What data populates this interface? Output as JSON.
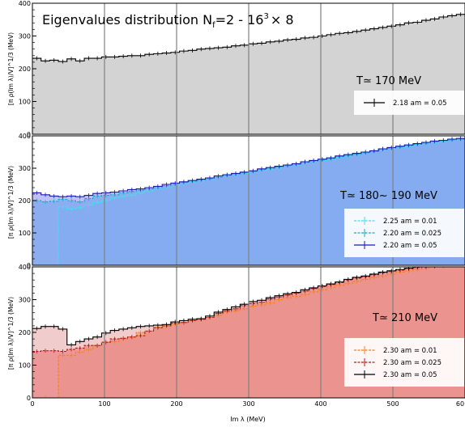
{
  "chart_data": [
    {
      "type": "area",
      "title_main": "Eigenvalues distribution N",
      "title_sub": "f",
      "title_mid": "=2 - 16",
      "title_sup": "3",
      "title_end": "× 8",
      "temperature_label": "T≃ 170 MeV",
      "ylabel": "[π ρ(Im λ)/V]^1/3 (MeV)",
      "xlim": [
        0,
        600
      ],
      "ylim": [
        0,
        400
      ],
      "x_ticks": [
        "100",
        "200",
        "300",
        "400",
        "500"
      ],
      "y_ticks": [
        "0",
        "100",
        "200",
        "300",
        "400"
      ],
      "legend_position": "right",
      "series": [
        {
          "name": "2.18 am = 0.05",
          "color": "#000000",
          "fill": "#d3d3d3",
          "x": [
            0,
            12,
            24,
            36,
            48,
            60,
            72,
            84,
            96,
            108,
            120,
            132,
            144,
            156,
            168,
            180,
            192,
            204,
            216,
            228,
            240,
            252,
            264,
            276,
            288,
            300,
            312,
            324,
            336,
            348,
            360,
            372,
            384,
            396,
            408,
            420,
            432,
            444,
            456,
            468,
            480,
            492,
            504,
            516,
            528,
            540,
            552,
            564,
            576,
            588,
            600
          ],
          "y": [
            232,
            224,
            226,
            222,
            230,
            224,
            232,
            232,
            236,
            236,
            238,
            240,
            240,
            244,
            246,
            248,
            250,
            254,
            256,
            260,
            262,
            264,
            266,
            270,
            272,
            276,
            278,
            282,
            284,
            288,
            290,
            294,
            296,
            300,
            304,
            308,
            310,
            314,
            318,
            322,
            326,
            330,
            334,
            340,
            342,
            348,
            352,
            358,
            362,
            366,
            368
          ]
        }
      ]
    },
    {
      "type": "area",
      "temperature_label": "T≃ 180~ 190 MeV",
      "ylabel": "[π ρ(Im λ)/V]^1/3 (MeV)",
      "xlim": [
        0,
        600
      ],
      "ylim": [
        0,
        400
      ],
      "y_ticks": [
        "0",
        "100",
        "200",
        "300",
        "400"
      ],
      "legend_position": "right",
      "series": [
        {
          "name": "2.25 am = 0.01",
          "color": "#40e0f0",
          "fill": "#5bc8f5",
          "x": [
            0,
            36,
            48,
            60,
            72,
            84,
            96,
            108,
            120,
            132,
            144,
            156,
            168,
            180,
            192,
            204,
            216,
            228,
            240,
            252,
            264,
            276,
            288,
            300,
            312,
            324,
            336,
            348,
            360,
            372,
            384,
            396,
            408,
            420,
            432,
            444,
            456,
            468,
            480,
            492,
            504,
            516,
            528,
            540,
            552,
            564,
            576,
            588,
            600
          ],
          "y": [
            0,
            180,
            174,
            178,
            186,
            194,
            200,
            208,
            212,
            216,
            224,
            230,
            236,
            240,
            246,
            252,
            258,
            262,
            266,
            272,
            276,
            280,
            284,
            290,
            294,
            298,
            302,
            306,
            310,
            316,
            320,
            324,
            328,
            334,
            338,
            344,
            348,
            352,
            356,
            360,
            364,
            368,
            372,
            376,
            380,
            384,
            388,
            390,
            392
          ]
        },
        {
          "name": "2.20 am = 0.025",
          "color": "#1aa8c8",
          "fill": "#5bc0f0",
          "x": [
            0,
            12,
            24,
            36,
            48,
            60,
            72,
            84,
            96,
            108,
            120,
            132,
            144,
            156,
            168,
            180,
            192,
            204,
            216,
            228,
            240,
            252,
            264,
            276,
            288,
            300,
            312,
            324,
            336,
            348,
            360,
            372,
            384,
            396,
            408,
            420,
            432,
            444,
            456,
            468,
            480,
            492,
            504,
            516,
            528,
            540,
            552,
            564,
            576,
            588,
            600
          ],
          "y": [
            200,
            196,
            198,
            204,
            200,
            196,
            206,
            214,
            216,
            218,
            224,
            228,
            232,
            236,
            240,
            246,
            250,
            256,
            260,
            264,
            268,
            272,
            278,
            282,
            286,
            290,
            296,
            300,
            304,
            308,
            312,
            318,
            322,
            326,
            330,
            336,
            340,
            344,
            348,
            352,
            358,
            362,
            366,
            370,
            374,
            378,
            382,
            386,
            388,
            390,
            392
          ]
        },
        {
          "name": "2.20 am = 0.05",
          "color": "#1a1ab4",
          "fill": "#9aa0f0",
          "x": [
            0,
            12,
            24,
            36,
            48,
            60,
            72,
            84,
            96,
            108,
            120,
            132,
            144,
            156,
            168,
            180,
            192,
            204,
            216,
            228,
            240,
            252,
            264,
            276,
            288,
            300,
            312,
            324,
            336,
            348,
            360,
            372,
            384,
            396,
            408,
            420,
            432,
            444,
            456,
            468,
            480,
            492,
            504,
            516,
            528,
            540,
            552,
            564,
            576,
            588,
            600
          ],
          "y": [
            224,
            218,
            214,
            212,
            214,
            212,
            216,
            222,
            224,
            226,
            230,
            234,
            236,
            240,
            244,
            250,
            254,
            258,
            262,
            266,
            270,
            276,
            280,
            284,
            288,
            292,
            298,
            302,
            306,
            310,
            314,
            320,
            324,
            328,
            332,
            338,
            342,
            346,
            350,
            354,
            360,
            364,
            368,
            372,
            376,
            380,
            384,
            386,
            390,
            392,
            394
          ]
        }
      ]
    },
    {
      "type": "area",
      "temperature_label": "T≃ 210 MeV",
      "ylabel": "[π ρ(Im λ)/V]^1/3 (MeV)",
      "xlabel": "Im λ (MeV)",
      "xlim": [
        0,
        600
      ],
      "ylim": [
        0,
        400
      ],
      "x_ticks": [
        "0",
        "100",
        "200",
        "300",
        "400",
        "500",
        "60"
      ],
      "y_ticks": [
        "0",
        "100",
        "200",
        "300",
        "400"
      ],
      "legend_position": "right",
      "series": [
        {
          "name": "2.30 am = 0.01",
          "color": "#f08020",
          "fill": "#f7931e",
          "x": [
            0,
            36,
            48,
            60,
            72,
            84,
            96,
            108,
            120,
            132,
            144,
            156,
            168,
            180,
            192,
            204,
            216,
            228,
            240,
            252,
            264,
            276,
            288,
            300,
            312,
            324,
            336,
            348,
            360,
            372,
            384,
            396,
            408,
            420,
            432,
            444,
            456,
            468,
            480,
            492,
            504,
            516,
            528,
            540,
            552,
            564,
            576,
            588,
            600
          ],
          "y": [
            0,
            130,
            130,
            140,
            148,
            160,
            170,
            172,
            180,
            186,
            200,
            204,
            216,
            220,
            226,
            230,
            236,
            240,
            246,
            252,
            262,
            266,
            272,
            280,
            284,
            290,
            300,
            306,
            310,
            316,
            324,
            330,
            338,
            344,
            350,
            356,
            362,
            368,
            372,
            378,
            384,
            388,
            392,
            396,
            400,
            402,
            404,
            406,
            408
          ]
        },
        {
          "name": "2.30 am = 0.025",
          "color": "#b01818",
          "fill": "#f05050",
          "x": [
            0,
            12,
            24,
            36,
            48,
            60,
            72,
            84,
            96,
            108,
            120,
            132,
            144,
            156,
            168,
            180,
            192,
            204,
            216,
            228,
            240,
            252,
            264,
            276,
            288,
            300,
            312,
            324,
            336,
            348,
            360,
            372,
            384,
            396,
            408,
            420,
            432,
            444,
            456,
            468,
            480,
            492,
            504,
            516,
            528,
            540,
            552,
            564,
            576,
            588,
            600
          ],
          "y": [
            142,
            144,
            144,
            142,
            148,
            152,
            160,
            160,
            170,
            180,
            182,
            186,
            190,
            204,
            214,
            220,
            228,
            230,
            236,
            240,
            246,
            258,
            266,
            272,
            282,
            288,
            292,
            302,
            308,
            314,
            320,
            326,
            334,
            340,
            346,
            352,
            360,
            366,
            370,
            376,
            382,
            386,
            390,
            394,
            398,
            400,
            402,
            404,
            406,
            408,
            410
          ]
        },
        {
          "name": "2.30 am = 0.05",
          "color": "#000000",
          "fill": "#e8b0b0",
          "x": [
            0,
            12,
            24,
            36,
            48,
            60,
            72,
            84,
            96,
            108,
            120,
            132,
            144,
            156,
            168,
            180,
            192,
            204,
            216,
            228,
            240,
            252,
            264,
            276,
            288,
            300,
            312,
            324,
            336,
            348,
            360,
            372,
            384,
            396,
            408,
            420,
            432,
            444,
            456,
            468,
            480,
            492,
            504,
            516,
            528,
            540,
            552,
            564,
            576,
            588,
            600
          ],
          "y": [
            212,
            218,
            218,
            210,
            162,
            172,
            180,
            186,
            198,
            206,
            210,
            214,
            218,
            220,
            222,
            224,
            232,
            236,
            240,
            242,
            250,
            262,
            270,
            278,
            286,
            294,
            298,
            306,
            312,
            318,
            322,
            330,
            336,
            342,
            348,
            354,
            362,
            368,
            372,
            378,
            384,
            388,
            392,
            396,
            400,
            402,
            404,
            406,
            408,
            410,
            412
          ]
        }
      ]
    }
  ]
}
